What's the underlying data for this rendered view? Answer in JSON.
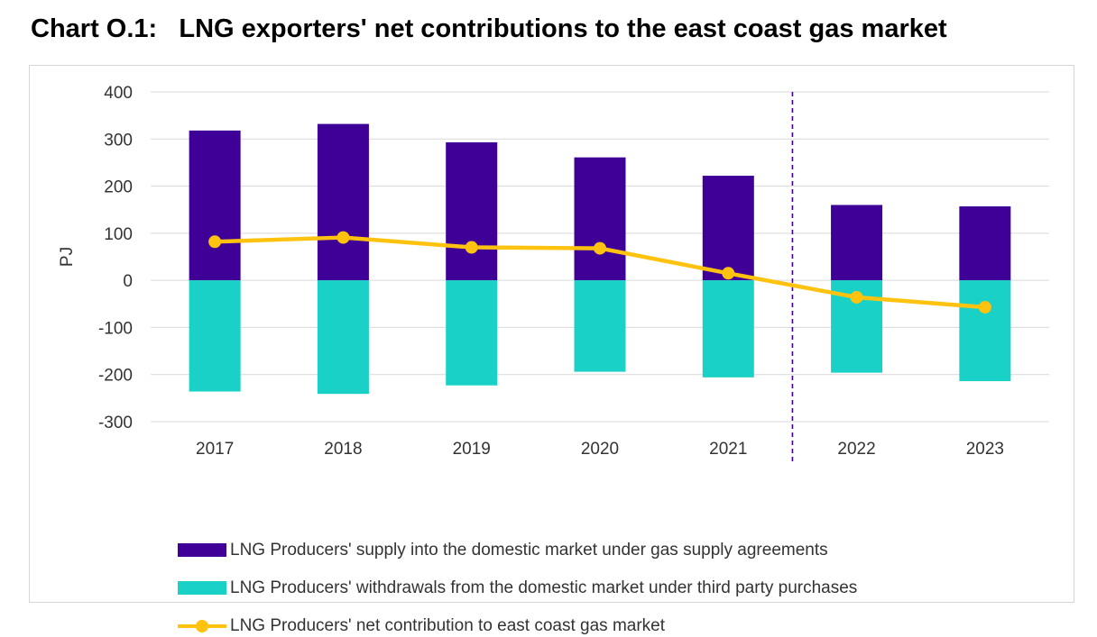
{
  "title": "Chart O.1:   LNG exporters' net contributions to the east coast gas market",
  "colors": {
    "supply": "#3e0097",
    "withdrawals": "#1ad1c8",
    "net": "#ffc20e",
    "grid": "#d9d9d9",
    "divider": "#3e0097"
  },
  "chart_data": {
    "type": "bar",
    "categories": [
      "2017",
      "2018",
      "2019",
      "2020",
      "2021",
      "2022",
      "2023"
    ],
    "ylabel": "PJ",
    "ylim": [
      -300,
      400
    ],
    "yticks": [
      "400",
      "300",
      "200",
      "100",
      "0",
      "-100",
      "-200",
      "-300"
    ],
    "ytick_values": [
      400,
      300,
      200,
      100,
      0,
      -100,
      -200,
      -300
    ],
    "grid": true,
    "legend_position": "bottom",
    "divider_after_category": "2021",
    "series": [
      {
        "name": "LNG Producers' supply into the domestic market under gas supply agreements",
        "type": "bar",
        "values": [
          318,
          332,
          293,
          261,
          222,
          160,
          157
        ]
      },
      {
        "name": "LNG Producers' withdrawals from the domestic market under third party purchases",
        "type": "bar",
        "values": [
          -236,
          -241,
          -223,
          -194,
          -206,
          -196,
          -214
        ]
      },
      {
        "name": "LNG Producers' net contribution to east coast gas market",
        "type": "line",
        "values": [
          82,
          91,
          70,
          68,
          15,
          -36,
          -57
        ]
      }
    ]
  }
}
